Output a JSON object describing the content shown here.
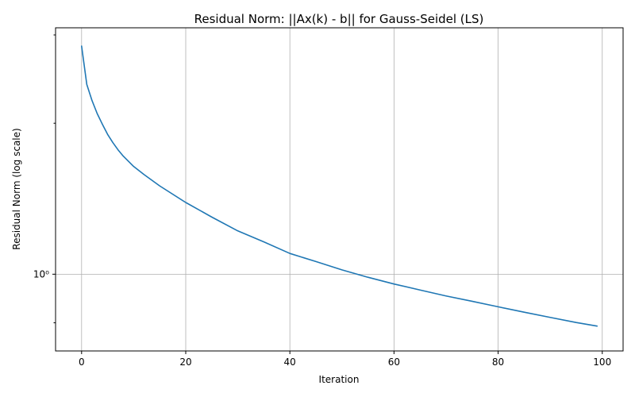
{
  "chart_data": {
    "type": "line",
    "title": "Residual Norm: ||Ax(k) - b|| for Gauss-Seidel (LS)",
    "xlabel": "Iteration",
    "ylabel": "Residual Norm (log scale)",
    "yscale": "log",
    "grid": true,
    "xlim": [
      -5,
      104
    ],
    "ylim": [
      0.703,
      3.1
    ],
    "xticks": [
      0,
      20,
      40,
      60,
      80,
      100
    ],
    "xtick_labels": [
      "0",
      "20",
      "40",
      "60",
      "80",
      "100"
    ],
    "yticks": [
      1
    ],
    "ytick_labels": [
      "10⁰"
    ],
    "y_minor_ticks": [
      0.8,
      2,
      3
    ],
    "series": [
      {
        "color": "#1f77b4",
        "x": [
          0,
          1,
          2,
          3,
          4,
          5,
          6,
          7,
          8,
          10,
          12,
          15,
          20,
          25,
          30,
          35,
          40,
          45,
          50,
          55,
          60,
          65,
          70,
          75,
          80,
          85,
          90,
          95,
          99
        ],
        "y": [
          2.85,
          2.39,
          2.22,
          2.09,
          1.99,
          1.9,
          1.83,
          1.77,
          1.72,
          1.64,
          1.58,
          1.5,
          1.39,
          1.3,
          1.22,
          1.16,
          1.1,
          1.06,
          1.02,
          0.986,
          0.956,
          0.93,
          0.905,
          0.883,
          0.861,
          0.84,
          0.82,
          0.801,
          0.788
        ]
      }
    ]
  }
}
